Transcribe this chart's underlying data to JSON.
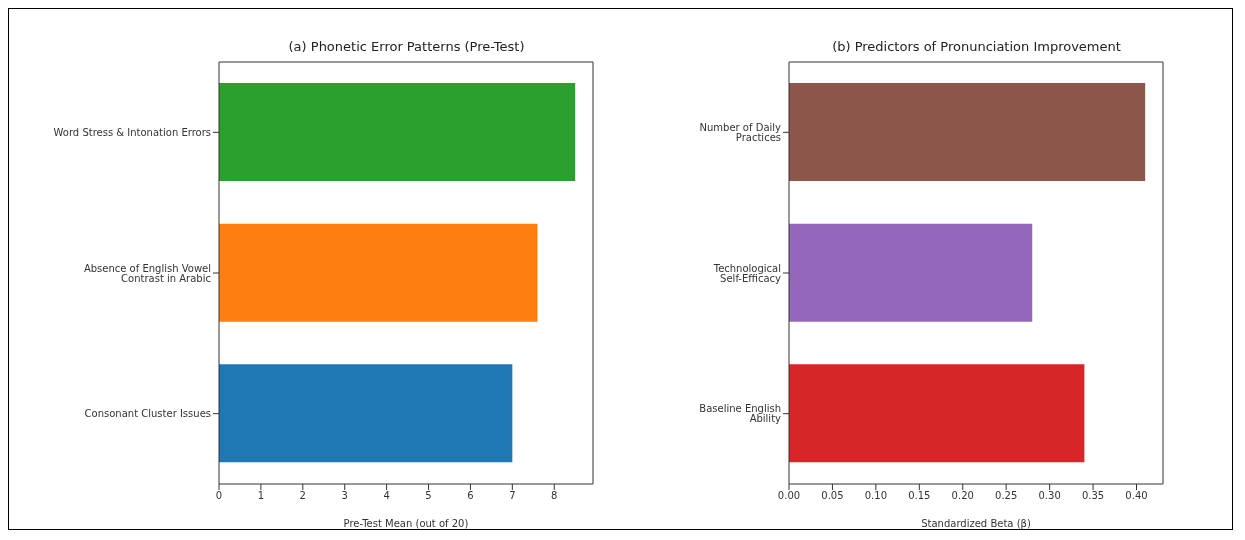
{
  "chart_data": [
    {
      "type": "bar",
      "orientation": "horizontal",
      "title": "(a) Phonetic Error Patterns (Pre-Test)",
      "xlabel": "Pre-Test Mean (out of 20)",
      "categories": [
        "Word Stress & Intonation Errors",
        "Absence of English Vowel Contrast in Arabic",
        "Consonant Cluster Issues"
      ],
      "values": [
        8.5,
        7.6,
        7.0
      ],
      "colors": [
        "#2ca02c",
        "#ff7f0e",
        "#1f77b4"
      ],
      "xlim": [
        0,
        8.925
      ],
      "xticks": [
        0,
        1,
        2,
        3,
        4,
        5,
        6,
        7,
        8
      ]
    },
    {
      "type": "bar",
      "orientation": "horizontal",
      "title": "(b) Predictors of Pronunciation Improvement",
      "xlabel": "Standardized Beta (β)",
      "categories": [
        "Number of Daily Practices",
        "Technological Self-Efficacy",
        "Baseline English Ability"
      ],
      "values": [
        0.41,
        0.28,
        0.34
      ],
      "colors": [
        "#8c564b",
        "#9467bd",
        "#d62728"
      ],
      "xlim": [
        0,
        0.4305
      ],
      "xticks": [
        {
          "value": 0,
          "label": "0.00"
        },
        {
          "value": 0.05,
          "label": "0.05"
        },
        {
          "value": 0.1,
          "label": "0.10"
        },
        {
          "value": 0.15,
          "label": "0.15"
        },
        {
          "value": 0.2,
          "label": "0.20"
        },
        {
          "value": 0.25,
          "label": "0.25"
        },
        {
          "value": 0.3,
          "label": "0.30"
        },
        {
          "value": 0.35,
          "label": "0.35"
        },
        {
          "value": 0.4,
          "label": "0.40"
        }
      ]
    }
  ]
}
